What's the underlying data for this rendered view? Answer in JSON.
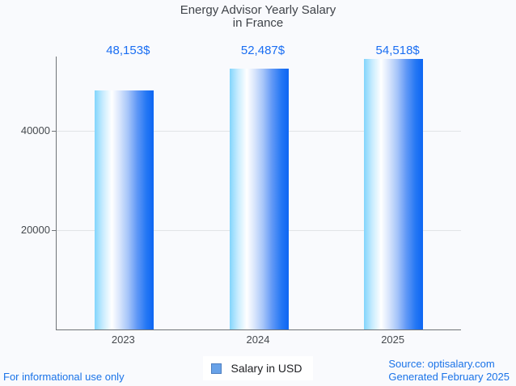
{
  "chart_data": {
    "type": "bar",
    "title": "Energy Advisor Yearly Salary in France",
    "title_lines": [
      "Energy Advisor Yearly Salary",
      "in France"
    ],
    "categories": [
      "2023",
      "2024",
      "2025"
    ],
    "values": [
      48153,
      52487,
      54518
    ],
    "value_labels": [
      "48,153$",
      "52,487$",
      "54,518$"
    ],
    "series": [
      {
        "name": "Salary in USD",
        "values": [
          48153,
          52487,
          54518
        ]
      }
    ],
    "xlabel": "",
    "ylabel": "",
    "ylim": [
      0,
      55000
    ],
    "yticks": [
      20000,
      40000
    ],
    "ytick_labels": [
      "20000",
      "40000"
    ],
    "grid": true,
    "legend_position": "bottom-center"
  },
  "legend": {
    "label": "Salary in USD"
  },
  "footer": {
    "disclaimer": "For informational use only",
    "source": "Source: optisalary.com",
    "generated": "Generated February 2025"
  },
  "colors": {
    "value_label_blue": "#1a6ef2",
    "link_blue": "#1a73e8",
    "bar_gradient_left": "#82d5fc",
    "bar_gradient_mid": "#ffffff",
    "bar_gradient_right": "#0d66f3",
    "legend_marker_fill": "#68a2e8",
    "legend_marker_border": "#4d7ec0",
    "axis_gray": "#6f7377",
    "gridline_gray": "#e2e4e7",
    "title_text": "#3f4349",
    "background": "#f9fafd"
  }
}
